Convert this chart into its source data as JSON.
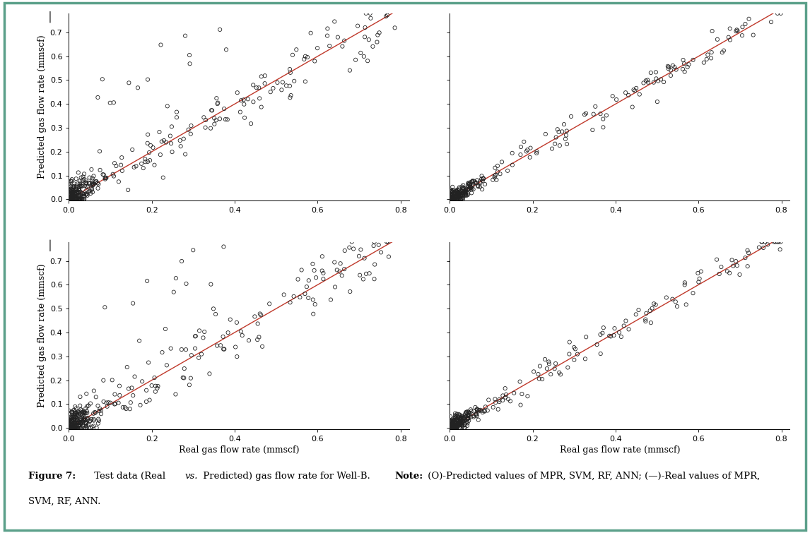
{
  "xlabel": "Real gas flow rate (mmscf)",
  "ylabel": "Predicted gas flow rate (mmscf)",
  "xlim": [
    0.0,
    0.82
  ],
  "ylim": [
    -0.005,
    0.78
  ],
  "xticks": [
    0.0,
    0.2,
    0.4,
    0.6,
    0.8
  ],
  "yticks": [
    0.0,
    0.1,
    0.2,
    0.3,
    0.4,
    0.5,
    0.6,
    0.7
  ],
  "line_color": "#c0392b",
  "marker_color": "#222222",
  "marker_facecolor": "none",
  "marker_size": 14,
  "marker_linewidth": 0.6,
  "line_width": 1.0,
  "background_color": "#ffffff",
  "border_color": "#5ba08a",
  "n_points_dense": 220,
  "n_points_sparse": 120
}
